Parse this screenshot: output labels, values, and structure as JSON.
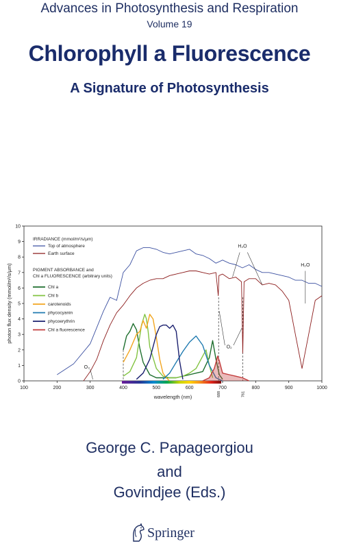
{
  "cover": {
    "series": "Advances in Photosynthesis and Respiration",
    "volume": "Volume 19",
    "title": "Chlorophyll a Fluorescence",
    "subtitle": "A Signature of Photosynthesis",
    "authors": [
      "George C. Papageorgiou",
      "and",
      "Govindjee (Eds.)"
    ],
    "publisher": "Springer",
    "publisher_icon": "springer-horse-logo-icon"
  },
  "chart_data": {
    "type": "line",
    "xlabel": "wavelength (nm)",
    "ylabel": "photon flux density (mmol/m²/s/μm)",
    "xlim": [
      100,
      1000
    ],
    "ylim": [
      0,
      10
    ],
    "x_ticks": [
      100,
      200,
      300,
      400,
      500,
      600,
      700,
      800,
      900,
      1000
    ],
    "y_ticks": [
      0,
      1,
      2,
      3,
      4,
      5,
      6,
      7,
      8,
      9,
      10
    ],
    "legend_headers": [
      "IRRADIANCE (mmol/m²/s/μm)",
      "PIGMENT ABSORBANCE and",
      "Chl a FLUORESCENCE (arbitrary units)"
    ],
    "annotations": [
      {
        "text": "O₃",
        "x": 290,
        "y": 0.8
      },
      {
        "text": "H₂O",
        "x": 760,
        "y": 8.6
      },
      {
        "text": "H₂O",
        "x": 950,
        "y": 7.4
      },
      {
        "text": "O₂",
        "x": 720,
        "y": 2.1
      },
      {
        "text": "688",
        "x": 688,
        "y": -0.6
      },
      {
        "text": "761",
        "x": 761,
        "y": -0.6
      }
    ],
    "series": [
      {
        "name": "Top of atmosphere",
        "color": "#3a4fa0",
        "x": [
          200,
          250,
          300,
          340,
          360,
          380,
          400,
          420,
          440,
          460,
          480,
          500,
          520,
          540,
          560,
          580,
          600,
          620,
          640,
          660,
          680,
          700,
          720,
          740,
          760,
          780,
          800,
          820,
          840,
          860,
          880,
          900,
          920,
          940,
          960,
          980,
          1000
        ],
        "y": [
          0.4,
          1.1,
          2.4,
          4.5,
          5.4,
          5.2,
          7.0,
          7.5,
          8.4,
          8.6,
          8.6,
          8.5,
          8.3,
          8.2,
          8.3,
          8.4,
          8.5,
          8.2,
          8.1,
          7.9,
          7.6,
          7.8,
          7.6,
          7.5,
          7.3,
          7.5,
          7.2,
          7.0,
          7.0,
          6.9,
          6.8,
          6.7,
          6.5,
          6.5,
          6.3,
          6.3,
          6.1
        ]
      },
      {
        "name": "Earth surface",
        "color": "#8b1a1a",
        "x": [
          280,
          300,
          320,
          340,
          360,
          380,
          400,
          420,
          440,
          460,
          480,
          500,
          520,
          540,
          560,
          580,
          600,
          620,
          640,
          660,
          680,
          687,
          689,
          700,
          720,
          740,
          757,
          761,
          765,
          780,
          800,
          820,
          840,
          860,
          880,
          900,
          920,
          940,
          960,
          980,
          1000
        ],
        "y": [
          0.0,
          0.6,
          1.4,
          2.6,
          3.6,
          4.4,
          4.9,
          5.5,
          6.0,
          6.3,
          6.5,
          6.6,
          6.6,
          6.8,
          6.9,
          7.0,
          7.1,
          7.1,
          7.0,
          6.9,
          7.0,
          5.5,
          6.8,
          6.9,
          6.6,
          6.7,
          6.4,
          1.8,
          6.4,
          6.6,
          6.6,
          6.2,
          6.3,
          6.2,
          5.8,
          5.2,
          3.0,
          0.8,
          3.0,
          5.2,
          5.5
        ]
      },
      {
        "name": "Chl a",
        "color": "#1d6e2d",
        "x": [
          400,
          410,
          420,
          430,
          440,
          450,
          460,
          480,
          500,
          520,
          540,
          560,
          580,
          600,
          620,
          640,
          660,
          670,
          675,
          680,
          690,
          700
        ],
        "y": [
          2.0,
          2.9,
          3.2,
          3.7,
          3.3,
          2.1,
          1.2,
          0.4,
          0.2,
          0.2,
          0.2,
          0.2,
          0.3,
          0.4,
          0.5,
          0.6,
          1.5,
          2.6,
          2.0,
          1.4,
          0.4,
          0.1
        ]
      },
      {
        "name": "Chl b",
        "color": "#82c341",
        "x": [
          400,
          420,
          440,
          455,
          465,
          470,
          475,
          480,
          500,
          520,
          540,
          560,
          580,
          600,
          620,
          640,
          650,
          660,
          670
        ],
        "y": [
          0.3,
          0.6,
          1.5,
          3.6,
          4.3,
          4.0,
          3.2,
          2.2,
          0.8,
          0.3,
          0.2,
          0.2,
          0.3,
          0.5,
          0.8,
          1.6,
          2.0,
          1.0,
          0.2
        ]
      },
      {
        "name": "carotenoids",
        "color": "#f2a51f",
        "x": [
          400,
          420,
          440,
          450,
          460,
          470,
          480,
          490,
          500,
          510,
          520,
          530,
          540
        ],
        "y": [
          1.2,
          2.0,
          3.0,
          3.2,
          3.9,
          3.4,
          4.3,
          4.0,
          2.8,
          1.4,
          0.5,
          0.2,
          0.0
        ]
      },
      {
        "name": "phycocyanin",
        "color": "#1f7ab0",
        "x": [
          520,
          540,
          560,
          580,
          600,
          620,
          640,
          660,
          680,
          700
        ],
        "y": [
          0.1,
          0.5,
          1.2,
          1.9,
          2.5,
          2.9,
          2.3,
          1.0,
          0.2,
          0.0
        ]
      },
      {
        "name": "phycoerythrin",
        "color": "#1a1f6e",
        "x": [
          440,
          460,
          480,
          500,
          510,
          520,
          530,
          540,
          550,
          560,
          570,
          580
        ],
        "y": [
          0.1,
          0.5,
          1.4,
          3.0,
          3.5,
          3.6,
          3.6,
          3.4,
          3.6,
          3.2,
          1.3,
          0.1
        ]
      },
      {
        "name": "Chl a fluorescence",
        "color": "#c23b3b",
        "x": [
          640,
          660,
          675,
          685,
          690,
          700,
          720,
          740,
          760,
          780
        ],
        "y": [
          0.0,
          0.2,
          0.8,
          1.6,
          1.3,
          0.5,
          0.4,
          0.3,
          0.2,
          0.0
        ]
      }
    ]
  }
}
